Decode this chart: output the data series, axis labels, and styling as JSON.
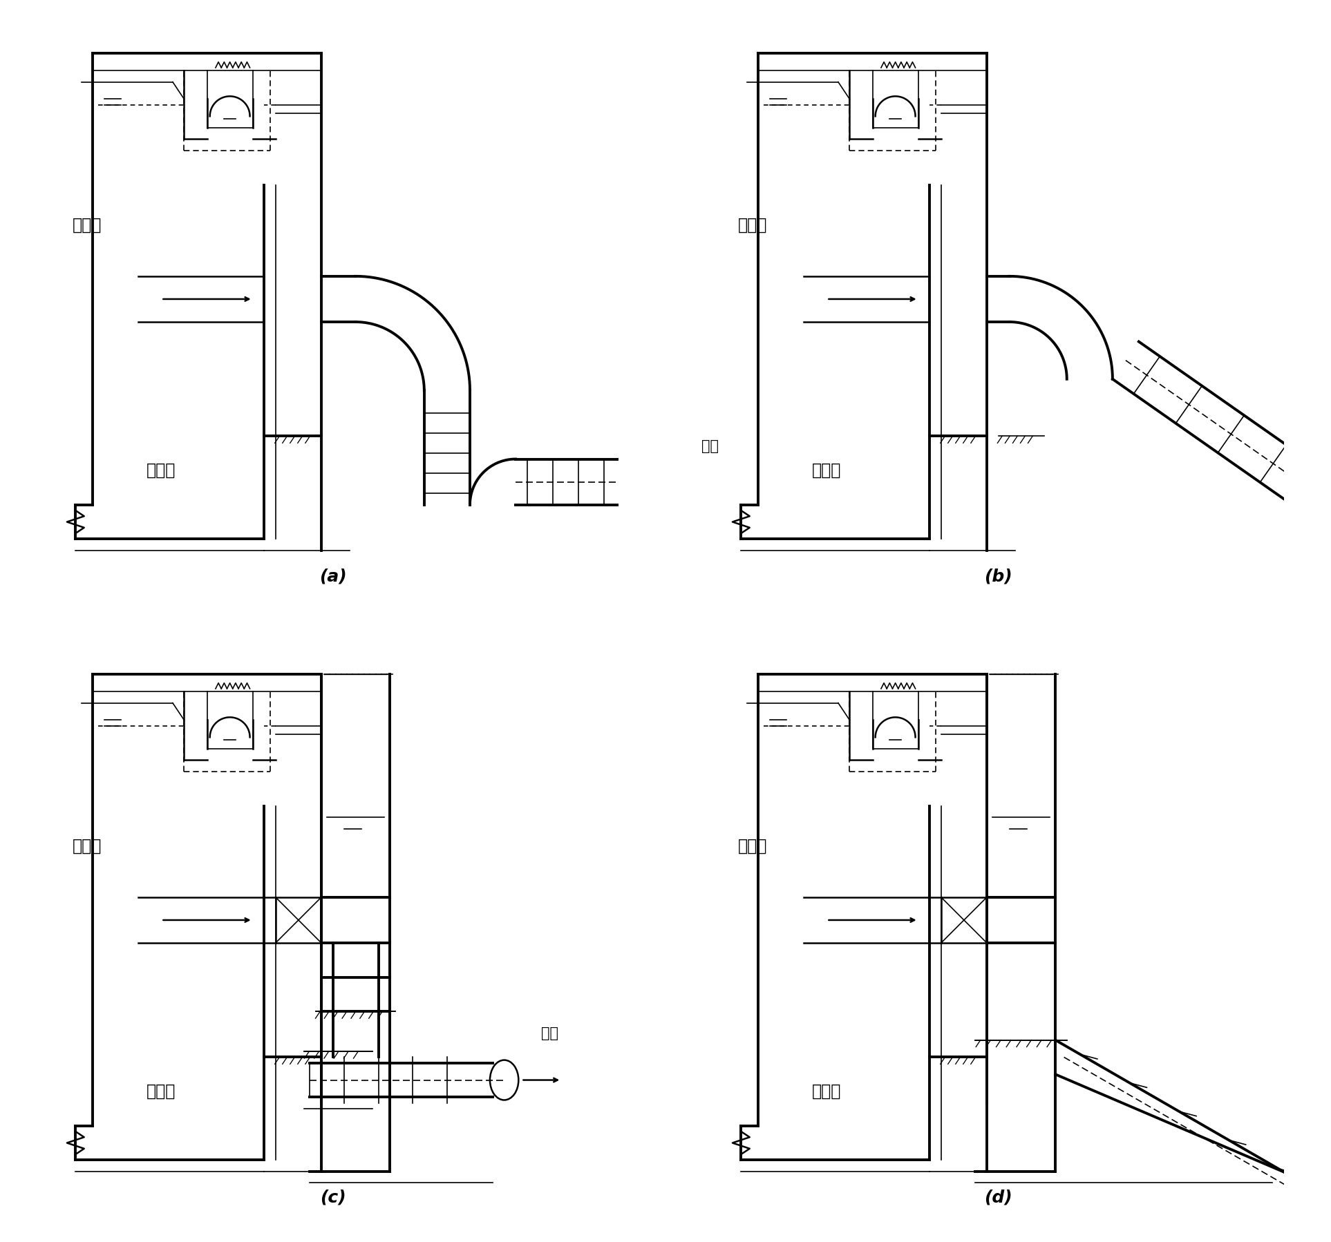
{
  "background": "#ffffff",
  "lw_thick": 2.8,
  "lw_med": 1.8,
  "lw_thin": 1.2,
  "labels": {
    "chushucao": "出水槽",
    "erchenchi": "二沉池",
    "chushui": "出水"
  },
  "subfig_labels": [
    "(a)",
    "(b)",
    "(c)",
    "(d)"
  ]
}
